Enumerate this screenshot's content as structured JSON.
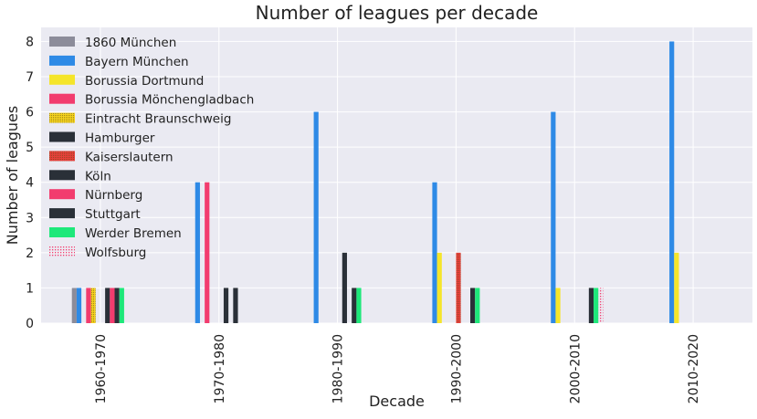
{
  "chart_data": {
    "type": "bar",
    "title": "Number of leagues per decade",
    "xlabel": "Decade",
    "ylabel": "Number of leagues",
    "ylim": [
      0,
      8.4
    ],
    "yticks": [
      0,
      1,
      2,
      3,
      4,
      5,
      6,
      7,
      8
    ],
    "grid": true,
    "legend_position": "top-left",
    "categories": [
      "1960-1970",
      "1970-1980",
      "1980-1990",
      "1990-2000",
      "2000-2010",
      "2010-2020"
    ],
    "series": [
      {
        "name": "1860 München",
        "color": "#8c8c9a",
        "pattern": "solid",
        "values": [
          1,
          0,
          0,
          0,
          0,
          0
        ]
      },
      {
        "name": "Bayern München",
        "color": "#2e8ae6",
        "pattern": "solid",
        "values": [
          1,
          4,
          6,
          4,
          6,
          8
        ]
      },
      {
        "name": "Borussia Dortmund",
        "color": "#f5e52a",
        "pattern": "solid",
        "values": [
          0,
          0,
          0,
          2,
          1,
          2
        ]
      },
      {
        "name": "Borussia Mönchengladbach",
        "color": "#f23c6e",
        "pattern": "solid",
        "values": [
          1,
          4,
          0,
          0,
          0,
          0
        ]
      },
      {
        "name": "Eintracht Braunschweig",
        "color": "#f5d21e",
        "pattern": "dots",
        "values": [
          1,
          0,
          0,
          0,
          0,
          0
        ]
      },
      {
        "name": "Hamburger",
        "color": "#2a3038",
        "pattern": "solid",
        "values": [
          0,
          0,
          0,
          0,
          0,
          0
        ]
      },
      {
        "name": "Kaiserslautern",
        "color": "#e8403c",
        "pattern": "dots",
        "values": [
          0,
          0,
          0,
          2,
          0,
          0
        ]
      },
      {
        "name": "Köln",
        "color": "#2a3038",
        "pattern": "solid",
        "values": [
          1,
          1,
          2,
          0,
          0,
          0
        ]
      },
      {
        "name": "Nürnberg",
        "color": "#f23c6e",
        "pattern": "solid",
        "values": [
          1,
          0,
          0,
          0,
          0,
          0
        ]
      },
      {
        "name": "Stuttgart",
        "color": "#2a3038",
        "pattern": "solid",
        "values": [
          1,
          1,
          1,
          1,
          1,
          0
        ]
      },
      {
        "name": "Werder Bremen",
        "color": "#1ee87a",
        "pattern": "solid",
        "values": [
          1,
          0,
          1,
          1,
          1,
          0
        ]
      },
      {
        "name": "Wolfsburg",
        "color": "#f23c6e",
        "pattern": "sparse-dots",
        "values": [
          0,
          0,
          0,
          0,
          1,
          0
        ]
      }
    ]
  }
}
